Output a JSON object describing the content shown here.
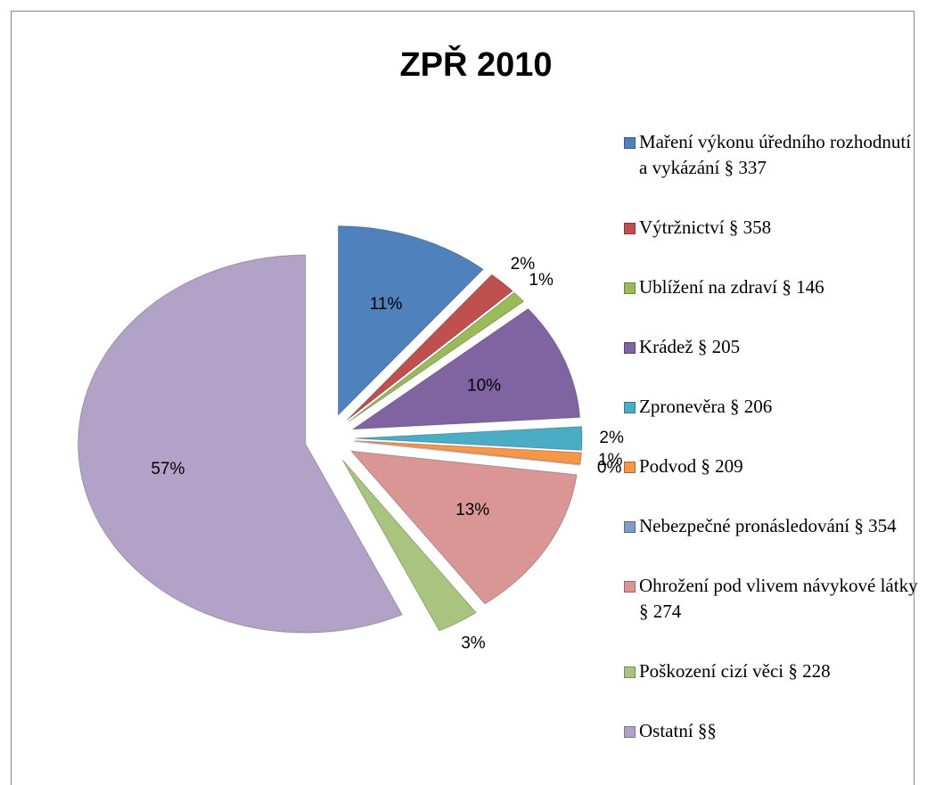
{
  "chart_data": {
    "type": "pie",
    "title": "ZPŘ 2010",
    "categories": [
      "Maření výkonu úředního rozhodnutí a vykázání § 337",
      "Výtržnictví § 358",
      "Ublížení na zdraví § 146",
      "Krádež § 205",
      "Zpronevěra § 206",
      "Podvod § 209",
      "Nebezpečné pronásledování § 354",
      "Ohrožení pod vlivem návykové látky § 274",
      "Poškození cizí věci § 228",
      "Ostatní §§"
    ],
    "values": [
      11,
      2,
      1,
      10,
      2,
      1,
      0,
      13,
      3,
      57
    ],
    "value_labels": [
      "11%",
      "2%",
      "1%",
      "10%",
      "2%",
      "1%",
      "0%",
      "13%",
      "3%",
      "57%"
    ],
    "colors": [
      "#4f81bd",
      "#c0504d",
      "#9bbb59",
      "#8064a2",
      "#4bacc6",
      "#f79646",
      "#7f9cc8",
      "#d99694",
      "#a9c47f",
      "#b3a2c7"
    ],
    "legend": "right"
  }
}
